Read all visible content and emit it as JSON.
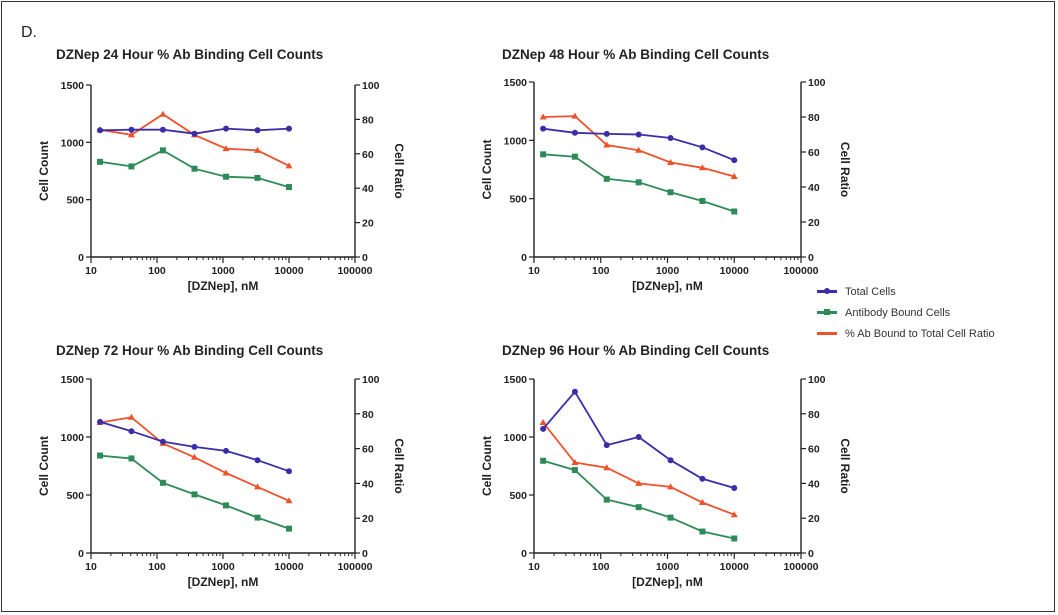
{
  "figure": {
    "label": "D."
  },
  "legend": [
    {
      "name": "Total Cells",
      "color": "#3a2ea8",
      "marker": "circle"
    },
    {
      "name": "Antibody Bound Cells",
      "color": "#2e8b57",
      "marker": "square"
    },
    {
      "name": "% Ab Bound to Total Cell Ratio",
      "color": "#f0502a",
      "marker": "triangle"
    }
  ],
  "chart_data": [
    {
      "type": "line",
      "title": "DZNep 24 Hour % Ab Binding Cell Counts",
      "xlabel": "[DZNep], nM",
      "ylabel": "Cell Count",
      "y2label": "Cell Ratio",
      "xscale": "log",
      "xlim": [
        10,
        100000
      ],
      "xticks": [
        "10",
        "100",
        "1000",
        "10000",
        "100000"
      ],
      "ylim": [
        0,
        1500
      ],
      "yticks": [
        "0",
        "500",
        "1000",
        "1500"
      ],
      "y2lim": [
        0,
        100
      ],
      "y2ticks": [
        "0",
        "20",
        "40",
        "60",
        "80",
        "100"
      ],
      "x": [
        13.7,
        41,
        123,
        370,
        1111,
        3333,
        10000
      ],
      "series": [
        {
          "name": "Total Cells",
          "axis": "left",
          "values": [
            1105,
            1110,
            1110,
            1075,
            1120,
            1105,
            1120
          ]
        },
        {
          "name": "Antibody Bound Cells",
          "axis": "left",
          "values": [
            830,
            790,
            930,
            770,
            700,
            690,
            610
          ]
        },
        {
          "name": "% Ab Bound to Total Cell Ratio",
          "axis": "right",
          "values": [
            74,
            71,
            83,
            71,
            63,
            62,
            53
          ]
        }
      ]
    },
    {
      "type": "line",
      "title": "DZNep 48 Hour % Ab Binding Cell Counts",
      "xlabel": "[DZNep], nM",
      "ylabel": "Cell Count",
      "y2label": "Cell Ratio",
      "xscale": "log",
      "xlim": [
        10,
        100000
      ],
      "xticks": [
        "10",
        "100",
        "1000",
        "10000",
        "100000"
      ],
      "ylim": [
        0,
        1500
      ],
      "yticks": [
        "0",
        "500",
        "1000",
        "1500"
      ],
      "y2lim": [
        0,
        100
      ],
      "y2ticks": [
        "0",
        "20",
        "40",
        "60",
        "80",
        "100"
      ],
      "x": [
        13.7,
        41,
        123,
        370,
        1111,
        3333,
        10000
      ],
      "series": [
        {
          "name": "Total Cells",
          "axis": "left",
          "values": [
            1100,
            1065,
            1055,
            1050,
            1020,
            940,
            830
          ]
        },
        {
          "name": "Antibody Bound Cells",
          "axis": "left",
          "values": [
            880,
            860,
            670,
            640,
            555,
            480,
            390
          ]
        },
        {
          "name": "% Ab Bound to Total Cell Ratio",
          "axis": "right",
          "values": [
            80,
            80.5,
            64,
            61,
            54,
            51,
            46
          ]
        }
      ]
    },
    {
      "type": "line",
      "title": "DZNep 72 Hour % Ab Binding Cell Counts",
      "xlabel": "[DZNep], nM",
      "ylabel": "Cell Count",
      "y2label": "Cell Ratio",
      "xscale": "log",
      "xlim": [
        10,
        100000
      ],
      "xticks": [
        "10",
        "100",
        "1000",
        "10000",
        "100000"
      ],
      "ylim": [
        0,
        1500
      ],
      "yticks": [
        "0",
        "500",
        "1000",
        "1500"
      ],
      "y2lim": [
        0,
        100
      ],
      "y2ticks": [
        "0",
        "20",
        "40",
        "60",
        "80",
        "100"
      ],
      "x": [
        13.7,
        41,
        123,
        370,
        1111,
        3333,
        10000
      ],
      "series": [
        {
          "name": "Total Cells",
          "axis": "left",
          "values": [
            1130,
            1050,
            960,
            915,
            880,
            800,
            705
          ]
        },
        {
          "name": "Antibody Bound Cells",
          "axis": "left",
          "values": [
            840,
            815,
            605,
            505,
            410,
            305,
            210
          ]
        },
        {
          "name": "% Ab Bound to Total Cell Ratio",
          "axis": "right",
          "values": [
            75,
            78,
            63,
            55,
            46,
            38,
            30
          ]
        }
      ]
    },
    {
      "type": "line",
      "title": "DZNep 96 Hour % Ab Binding Cell Counts",
      "xlabel": "[DZNep], nM",
      "ylabel": "Cell Count",
      "y2label": "Cell Ratio",
      "xscale": "log",
      "xlim": [
        10,
        100000
      ],
      "xticks": [
        "10",
        "100",
        "1000",
        "10000",
        "100000"
      ],
      "ylim": [
        0,
        1500
      ],
      "yticks": [
        "0",
        "500",
        "1000",
        "1500"
      ],
      "y2lim": [
        0,
        100
      ],
      "y2ticks": [
        "0",
        "20",
        "40",
        "60",
        "80",
        "100"
      ],
      "x": [
        13.7,
        41,
        123,
        370,
        1111,
        3333,
        10000
      ],
      "series": [
        {
          "name": "Total Cells",
          "axis": "left",
          "values": [
            1070,
            1390,
            930,
            1000,
            800,
            640,
            560
          ]
        },
        {
          "name": "Antibody Bound Cells",
          "axis": "left",
          "values": [
            795,
            715,
            460,
            395,
            305,
            185,
            125
          ]
        },
        {
          "name": "% Ab Bound to Total Cell Ratio",
          "axis": "right",
          "values": [
            75,
            52,
            49,
            40,
            38,
            29,
            22
          ]
        }
      ]
    }
  ]
}
